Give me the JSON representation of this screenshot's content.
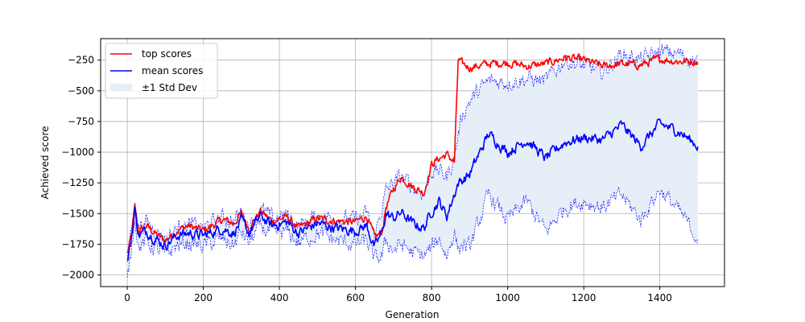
{
  "chart_data": {
    "type": "line",
    "title": "",
    "xlabel": "Generation",
    "ylabel": "Achieved score",
    "xlim": [
      -70,
      1570
    ],
    "ylim": [
      -2095,
      -75
    ],
    "x_ticks": [
      0,
      200,
      400,
      600,
      800,
      1000,
      1200,
      1400
    ],
    "y_ticks": [
      -2000,
      -1750,
      -1500,
      -1250,
      -1000,
      -750,
      -500,
      -250
    ],
    "grid": true,
    "legend_position": "top-left",
    "x_keypoints": [
      0,
      10,
      20,
      30,
      50,
      80,
      100,
      130,
      160,
      200,
      250,
      280,
      300,
      320,
      350,
      380,
      420,
      450,
      500,
      550,
      600,
      630,
      650,
      670,
      680,
      700,
      720,
      750,
      780,
      800,
      820,
      840,
      860,
      870,
      880,
      900,
      950,
      1000,
      1050,
      1100,
      1150,
      1200,
      1250,
      1300,
      1350,
      1400,
      1450,
      1500
    ],
    "series": [
      {
        "name": "top scores",
        "color": "#ff0000",
        "style": "solid",
        "values": [
          -1830,
          -1700,
          -1450,
          -1650,
          -1600,
          -1680,
          -1720,
          -1640,
          -1600,
          -1640,
          -1550,
          -1580,
          -1500,
          -1620,
          -1480,
          -1560,
          -1530,
          -1620,
          -1540,
          -1560,
          -1570,
          -1520,
          -1700,
          -1650,
          -1450,
          -1300,
          -1200,
          -1280,
          -1330,
          -1100,
          -1050,
          -1020,
          -1080,
          -250,
          -280,
          -310,
          -280,
          -270,
          -300,
          -280,
          -230,
          -250,
          -300,
          -280,
          -290,
          -240,
          -260,
          -260
        ]
      },
      {
        "name": "mean scores",
        "color": "#0000ff",
        "style": "solid",
        "values": [
          -1900,
          -1720,
          -1470,
          -1680,
          -1640,
          -1720,
          -1760,
          -1680,
          -1660,
          -1680,
          -1620,
          -1660,
          -1560,
          -1660,
          -1520,
          -1600,
          -1570,
          -1660,
          -1580,
          -1620,
          -1640,
          -1600,
          -1780,
          -1650,
          -1500,
          -1540,
          -1490,
          -1580,
          -1620,
          -1480,
          -1400,
          -1520,
          -1340,
          -1250,
          -1230,
          -1180,
          -850,
          -1000,
          -900,
          -1050,
          -920,
          -880,
          -900,
          -780,
          -950,
          -770,
          -830,
          -950
        ]
      },
      {
        "name": "mean + 1 std",
        "color": "#0000ff",
        "style": "dashed",
        "values": [
          -1870,
          -1650,
          -1420,
          -1600,
          -1570,
          -1650,
          -1700,
          -1620,
          -1590,
          -1620,
          -1530,
          -1560,
          -1480,
          -1600,
          -1460,
          -1540,
          -1510,
          -1600,
          -1520,
          -1540,
          -1550,
          -1500,
          -1680,
          -1450,
          -1320,
          -1250,
          -1200,
          -1280,
          -1330,
          -1150,
          -1150,
          -1200,
          -1050,
          -850,
          -700,
          -580,
          -420,
          -430,
          -400,
          -420,
          -250,
          -300,
          -350,
          -200,
          -250,
          -180,
          -200,
          -260
        ]
      },
      {
        "name": "mean - 1 std",
        "color": "#0000ff",
        "style": "dashed",
        "values": [
          -2050,
          -1800,
          -1520,
          -1770,
          -1730,
          -1800,
          -1840,
          -1760,
          -1740,
          -1760,
          -1710,
          -1760,
          -1650,
          -1740,
          -1600,
          -1680,
          -1650,
          -1740,
          -1660,
          -1720,
          -1750,
          -1720,
          -1880,
          -1850,
          -1720,
          -1800,
          -1750,
          -1820,
          -1850,
          -1780,
          -1700,
          -1850,
          -1640,
          -1800,
          -1750,
          -1780,
          -1350,
          -1550,
          -1400,
          -1650,
          -1450,
          -1400,
          -1450,
          -1350,
          -1550,
          -1300,
          -1480,
          -1700
        ]
      }
    ],
    "legend": [
      {
        "label": "top scores",
        "kind": "line",
        "color": "#ff0000"
      },
      {
        "label": "mean scores",
        "kind": "line",
        "color": "#0000ff"
      },
      {
        "label": "±1 Std Dev",
        "kind": "patch",
        "color": "#e6eff7"
      }
    ],
    "band_color": "#e6eff7"
  }
}
